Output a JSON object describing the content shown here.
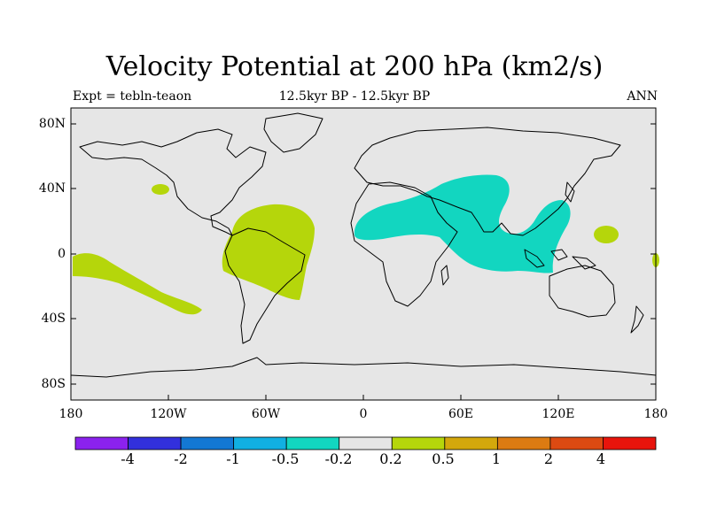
{
  "title": "Velocity Potential at 200 hPa (km2/s)",
  "subtitle_left": "Expt = tebln-teaon",
  "subtitle_center": "12.5kyr BP - 12.5kyr BP",
  "subtitle_right": "ANN",
  "lat_labels": [
    "80N",
    "40N",
    "0",
    "40S",
    "80S"
  ],
  "lon_labels": [
    "180",
    "120W",
    "60W",
    "0",
    "60E",
    "120E",
    "180"
  ],
  "colorbar": {
    "levels": [
      "-4",
      "-2",
      "-1",
      "-0.5",
      "-0.2",
      "0.2",
      "0.5",
      "1",
      "2",
      "4"
    ],
    "colors": [
      "#8b22ee",
      "#3230dc",
      "#1378d4",
      "#11b0e2",
      "#12d6c0",
      "#e6e6e6",
      "#b5d60b",
      "#d4a80c",
      "#dc7b12",
      "#dc4a12",
      "#e8140c"
    ]
  },
  "colors": {
    "background": "#e6e6e6",
    "positive": "#b5d60b",
    "negative": "#12d6c0",
    "coastline": "#000000"
  }
}
